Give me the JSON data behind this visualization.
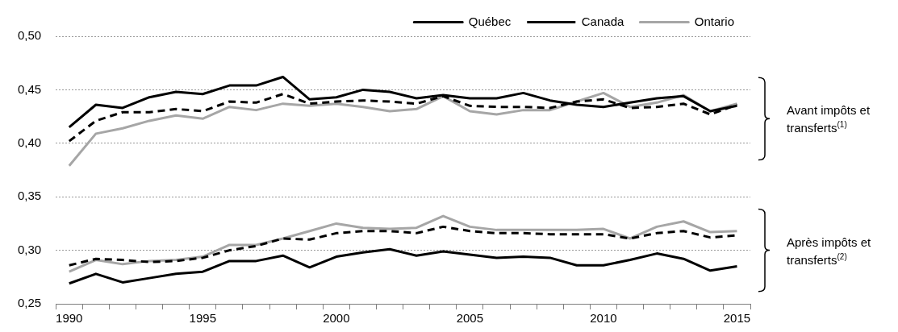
{
  "chart_data": {
    "type": "line",
    "categories": [
      "1990",
      null,
      null,
      null,
      null,
      "1995",
      null,
      null,
      null,
      null,
      "2000",
      null,
      null,
      null,
      null,
      "2005",
      null,
      null,
      null,
      null,
      "2010",
      null,
      null,
      null,
      null,
      "2015"
    ],
    "series": [
      {
        "name": "Québec",
        "color": "#000000",
        "line_style": "solid",
        "values": [
          0.415,
          0.436,
          0.433,
          0.443,
          0.448,
          0.446,
          0.454,
          0.454,
          0.462,
          0.441,
          0.443,
          0.45,
          0.448,
          0.442,
          0.445,
          0.442,
          0.442,
          0.447,
          0.44,
          0.436,
          0.434,
          0.438,
          0.442,
          0.444,
          0.43,
          0.435
        ]
      },
      {
        "name": "Canada",
        "color": "#000000",
        "line_style": "dashed",
        "values": [
          0.402,
          0.421,
          0.429,
          0.429,
          0.432,
          0.43,
          0.439,
          0.438,
          0.446,
          0.437,
          0.439,
          0.44,
          0.439,
          0.437,
          0.444,
          0.435,
          0.434,
          0.434,
          0.433,
          0.439,
          0.441,
          0.433,
          0.434,
          0.437,
          0.427,
          0.436
        ]
      },
      {
        "name": "Ontario",
        "color": "#a6a6a6",
        "line_style": "solid",
        "values": [
          0.379,
          0.409,
          0.414,
          0.421,
          0.426,
          0.423,
          0.434,
          0.431,
          0.437,
          0.435,
          0.437,
          0.434,
          0.43,
          0.432,
          0.444,
          0.43,
          0.427,
          0.431,
          0.431,
          0.439,
          0.447,
          0.434,
          0.438,
          0.445,
          0.43,
          0.437
        ]
      },
      {
        "color": "#000000",
        "line_style": "solid",
        "values": [
          0.269,
          0.278,
          0.27,
          0.274,
          0.278,
          0.28,
          0.29,
          0.29,
          0.295,
          0.284,
          0.294,
          0.298,
          0.301,
          0.295,
          0.299,
          0.296,
          0.293,
          0.294,
          0.293,
          0.286,
          0.286,
          0.291,
          0.297,
          0.292,
          0.281,
          0.285
        ]
      },
      {
        "color": "#000000",
        "line_style": "dashed",
        "values": [
          0.286,
          0.292,
          0.291,
          0.289,
          0.29,
          0.293,
          0.3,
          0.304,
          0.311,
          0.31,
          0.316,
          0.318,
          0.318,
          0.316,
          0.322,
          0.318,
          0.316,
          0.316,
          0.315,
          0.315,
          0.315,
          0.311,
          0.316,
          0.318,
          0.312,
          0.314
        ]
      },
      {
        "color": "#a6a6a6",
        "line_style": "solid",
        "values": [
          0.28,
          0.291,
          0.287,
          0.29,
          0.291,
          0.294,
          0.305,
          0.305,
          0.311,
          0.318,
          0.325,
          0.321,
          0.32,
          0.321,
          0.332,
          0.322,
          0.319,
          0.319,
          0.319,
          0.319,
          0.32,
          0.311,
          0.322,
          0.327,
          0.317,
          0.318
        ]
      }
    ],
    "ylim": [
      0.25,
      0.5
    ],
    "yticks": [
      {
        "value": 0.25,
        "label": "0,25"
      },
      {
        "value": 0.3,
        "label": "0,30"
      },
      {
        "value": 0.35,
        "label": "0,35"
      },
      {
        "value": 0.4,
        "label": "0,40"
      },
      {
        "value": 0.45,
        "label": "0,45"
      },
      {
        "value": 0.5,
        "label": "0,50"
      }
    ],
    "grid": "y",
    "legend": "top right",
    "marker": "none",
    "annotations": [
      "Avant impôts et transferts$^{(1)}$",
      "Après impôts et transferts$^{(2)}$"
    ]
  }
}
